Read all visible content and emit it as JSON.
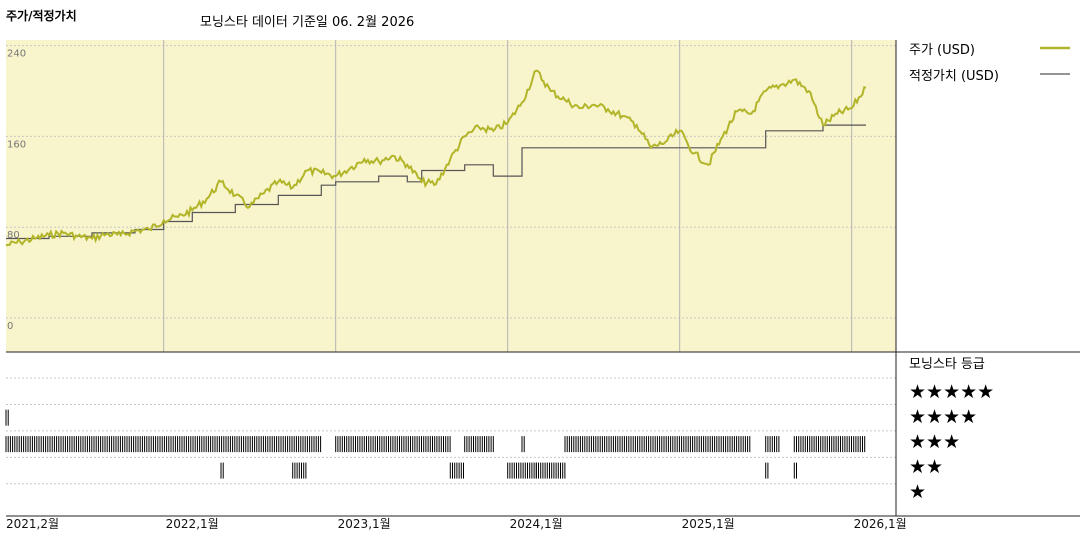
{
  "header": {
    "title": "주가/적정가치",
    "subtitle": "모닝스타 데이터 기준일 06. 2월 2026"
  },
  "legend": {
    "price_label": "주가 (USD)",
    "fair_label": "적정가치 (USD)"
  },
  "rating_panel": {
    "title": "모닝스타 등급",
    "levels": [
      "★★★★★",
      "★★★★",
      "★★★",
      "★★",
      "★"
    ]
  },
  "colors": {
    "panel_bg": "#f8f4cc",
    "price_line": "#b2b52a",
    "fair_line": "#555555",
    "grid": "#c8c8c8"
  },
  "chart_data": [
    {
      "type": "line",
      "title": "주가/적정가치",
      "subtitle": "모닝스타 데이터 기준일 06. 2월 2026",
      "x_range": [
        "2021-02",
        "2026-02"
      ],
      "x_tick_labels": [
        "2021,2월",
        "2022,1월",
        "2023,1월",
        "2024,1월",
        "2025,1월",
        "2026,1월"
      ],
      "y_tick_labels": [
        "240",
        "160",
        "80",
        "0"
      ],
      "ylim": [
        -30,
        245
      ],
      "grid": true,
      "legend_position": "right",
      "series": [
        {
          "name": "주가 (USD)",
          "color": "#b2b52a",
          "points": [
            [
              "2021-02",
              64
            ],
            [
              "2021-03",
              67
            ],
            [
              "2021-04",
              70
            ],
            [
              "2021-05",
              73
            ],
            [
              "2021-06",
              75
            ],
            [
              "2021-07",
              72
            ],
            [
              "2021-08",
              70
            ],
            [
              "2021-09",
              74
            ],
            [
              "2021-10",
              73
            ],
            [
              "2021-11",
              77
            ],
            [
              "2021-12",
              78
            ],
            [
              "2022-01",
              86
            ],
            [
              "2022-02",
              89
            ],
            [
              "2022-03",
              95
            ],
            [
              "2022-04",
              105
            ],
            [
              "2022-05",
              120
            ],
            [
              "2022-06",
              108
            ],
            [
              "2022-07",
              98
            ],
            [
              "2022-08",
              110
            ],
            [
              "2022-09",
              120
            ],
            [
              "2022-10",
              115
            ],
            [
              "2022-11",
              130
            ],
            [
              "2022-12",
              128
            ],
            [
              "2023-01",
              125
            ],
            [
              "2023-02",
              132
            ],
            [
              "2023-03",
              140
            ],
            [
              "2023-04",
              138
            ],
            [
              "2023-05",
              143
            ],
            [
              "2023-06",
              135
            ],
            [
              "2023-07",
              120
            ],
            [
              "2023-08",
              118
            ],
            [
              "2023-09",
              140
            ],
            [
              "2023-10",
              160
            ],
            [
              "2023-11",
              168
            ],
            [
              "2023-12",
              165
            ],
            [
              "2024-01",
              172
            ],
            [
              "2024-02",
              190
            ],
            [
              "2024-03",
              218
            ],
            [
              "2024-04",
              200
            ],
            [
              "2024-05",
              192
            ],
            [
              "2024-06",
              185
            ],
            [
              "2024-07",
              188
            ],
            [
              "2024-08",
              184
            ],
            [
              "2024-09",
              178
            ],
            [
              "2024-10",
              170
            ],
            [
              "2024-11",
              150
            ],
            [
              "2024-12",
              155
            ],
            [
              "2025-01",
              165
            ],
            [
              "2025-02",
              145
            ],
            [
              "2025-03",
              135
            ],
            [
              "2025-04",
              160
            ],
            [
              "2025-05",
              182
            ],
            [
              "2025-06",
              180
            ],
            [
              "2025-07",
              200
            ],
            [
              "2025-08",
              205
            ],
            [
              "2025-09",
              210
            ],
            [
              "2025-10",
              200
            ],
            [
              "2025-11",
              170
            ],
            [
              "2025-12",
              180
            ],
            [
              "2026-01",
              185
            ],
            [
              "2026-02",
              203
            ]
          ]
        },
        {
          "name": "적정가치 (USD)",
          "color": "#555555",
          "points": [
            [
              "2021-02",
              70
            ],
            [
              "2021-05",
              72
            ],
            [
              "2021-08",
              75
            ],
            [
              "2021-11",
              78
            ],
            [
              "2022-01",
              85
            ],
            [
              "2022-03",
              93
            ],
            [
              "2022-06",
              100
            ],
            [
              "2022-09",
              108
            ],
            [
              "2022-12",
              117
            ],
            [
              "2023-01",
              120
            ],
            [
              "2023-04",
              125
            ],
            [
              "2023-06",
              120
            ],
            [
              "2023-07",
              130
            ],
            [
              "2023-10",
              135
            ],
            [
              "2023-12",
              125
            ],
            [
              "2024-02",
              150
            ],
            [
              "2024-12",
              150
            ],
            [
              "2025-07",
              165
            ],
            [
              "2025-11",
              170
            ],
            [
              "2026-02",
              170
            ]
          ]
        }
      ]
    },
    {
      "type": "heatmap",
      "title": "모닝스타 등급",
      "rows": [
        "★★★★★",
        "★★★★",
        "★★★",
        "★★",
        "★"
      ],
      "x_range": [
        "2021-02",
        "2026-02"
      ],
      "segments": [
        {
          "rating": 4,
          "start": "2021-02",
          "end": "2021-02"
        },
        {
          "rating": 3,
          "start": "2021-02",
          "end": "2022-12"
        },
        {
          "rating": 3,
          "start": "2023-01",
          "end": "2023-09"
        },
        {
          "rating": 3,
          "start": "2023-10",
          "end": "2023-12"
        },
        {
          "rating": 3,
          "start": "2024-02",
          "end": "2024-02"
        },
        {
          "rating": 3,
          "start": "2024-05",
          "end": "2025-06"
        },
        {
          "rating": 3,
          "start": "2025-07",
          "end": "2025-08"
        },
        {
          "rating": 3,
          "start": "2025-09",
          "end": "2026-02"
        },
        {
          "rating": 2,
          "start": "2022-05",
          "end": "2022-05"
        },
        {
          "rating": 2,
          "start": "2022-10",
          "end": "2022-11"
        },
        {
          "rating": 2,
          "start": "2023-09",
          "end": "2023-10"
        },
        {
          "rating": 2,
          "start": "2024-01",
          "end": "2024-03"
        },
        {
          "rating": 2,
          "start": "2024-03",
          "end": "2024-05"
        },
        {
          "rating": 2,
          "start": "2025-07",
          "end": "2025-07"
        },
        {
          "rating": 2,
          "start": "2025-09",
          "end": "2025-09"
        }
      ]
    }
  ]
}
